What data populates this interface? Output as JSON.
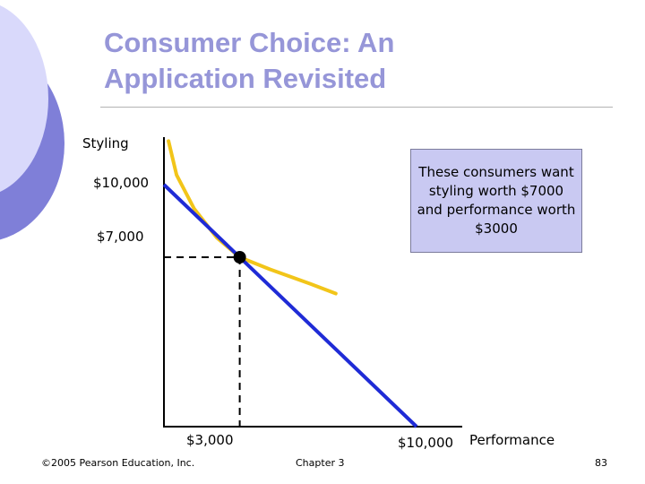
{
  "slide": {
    "title_line1": "Consumer Choice:  An",
    "title_line2": "Application Revisited",
    "accent_color": "#9696d8"
  },
  "chart_data": {
    "type": "line",
    "title": "Consumer Choice:  An Application Revisited",
    "xlabel": "Performance",
    "ylabel": "Styling",
    "y_ticks": [
      "$10,000",
      "$7,000"
    ],
    "x_ticks": [
      "$3,000",
      "$10,000"
    ],
    "xlim": [
      0,
      10000
    ],
    "ylim": [
      0,
      12000
    ],
    "series": [
      {
        "kind": "budget-line",
        "color": "#1f2bd6",
        "x": [
          0,
          10000
        ],
        "y": [
          10000,
          0
        ]
      },
      {
        "kind": "indifference-curve",
        "color": "#f2c519",
        "x": [
          180,
          500,
          1200,
          2100,
          3000,
          4200,
          5800,
          6800
        ],
        "y": [
          11800,
          10400,
          9000,
          7800,
          7000,
          6500,
          5900,
          5500
        ]
      }
    ],
    "optimum": {
      "x": 3000,
      "y": 7000
    }
  },
  "callout": {
    "text": "These consumers want styling worth $7000 and performance worth $3000"
  },
  "footer": {
    "copyright": "©2005 Pearson Education, Inc.",
    "chapter": "Chapter 3",
    "page": "83"
  }
}
